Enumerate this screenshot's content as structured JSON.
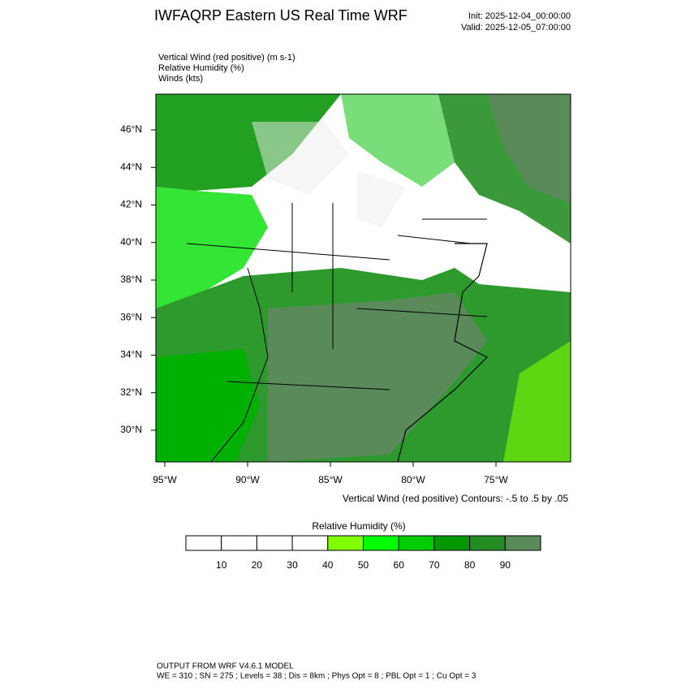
{
  "header": {
    "title": "IWFAQRP Eastern US Real Time WRF",
    "init": "Init: 2025-12-04_00:00:00",
    "valid": "Valid: 2025-12-05_07:00:00"
  },
  "fields": [
    "Vertical Wind (red positive)   (m s-1)",
    "Relative Humidity   (%)",
    "Winds   (kts)"
  ],
  "map": {
    "lat_labels": [
      "46°N",
      "44°N",
      "42°N",
      "40°N",
      "38°N",
      "36°N",
      "34°N",
      "32°N",
      "30°N"
    ],
    "lon_labels": [
      "95°W",
      "90°W",
      "85°W",
      "80°W",
      "75°W"
    ],
    "caption": "Vertical Wind (red positive) Contours: -.5 to .5 by .05"
  },
  "colorbar": {
    "title": "Relative Humidity   (%)",
    "labels": [
      "10",
      "20",
      "30",
      "40",
      "50",
      "60",
      "70",
      "80",
      "90"
    ],
    "colors": [
      "#ffffff",
      "#ffffff",
      "#ffffff",
      "#ffffff",
      "#80ff00",
      "#00ff00",
      "#00cc00",
      "#009900",
      "#228b22",
      "#5a8a5a"
    ]
  },
  "footer": [
    "OUTPUT FROM WRF V4.6.1 MODEL",
    "WE = 310 ; SN = 275 ; Levels = 38 ; Dis = 8km ; Phys Opt = 8 ; PBL Opt = 1 ; Cu Opt = 3"
  ]
}
